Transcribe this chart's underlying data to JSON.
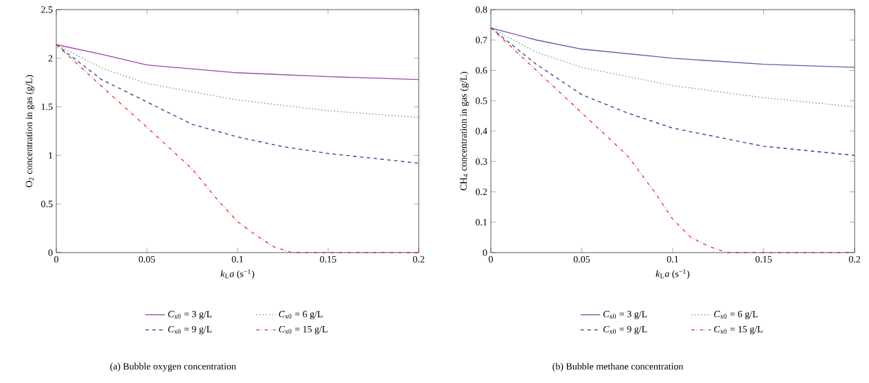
{
  "chart_data": [
    {
      "type": "line",
      "xlabel": "*k*$_{L}$*a* (s$^{−1}$)",
      "ylabel": "O$_{2}$ concentration in gas (g/L)",
      "xlim": [
        0,
        0.2
      ],
      "ylim": [
        0,
        2.5
      ],
      "xticks": [
        0,
        0.05,
        0.1,
        0.15,
        0.2
      ],
      "yticks": [
        0,
        0.5,
        1,
        1.5,
        2,
        2.5
      ],
      "legend": "bottom",
      "annotations": [
        "(a)  Bubble oxygen concentration"
      ],
      "series": [
        {
          "name": "*C*$_{x0}$ = 3 g/L",
          "color": "#a040b0",
          "line_style": "solid",
          "x": [
            0,
            0.025,
            0.05,
            0.1,
            0.15,
            0.2
          ],
          "values": [
            2.14,
            2.04,
            1.93,
            1.85,
            1.81,
            1.78
          ]
        },
        {
          "name": "*C*$_{x0}$ = 6 g/L",
          "color": "#30a050",
          "line_style": "dotted",
          "x": [
            0,
            0.025,
            0.05,
            0.1,
            0.15,
            0.2
          ],
          "values": [
            2.14,
            1.9,
            1.74,
            1.57,
            1.46,
            1.39
          ]
        },
        {
          "name": "*C*$_{x0}$ = 9 g/L",
          "color": "#303a90",
          "line_style": "dashed",
          "x": [
            0,
            0.025,
            0.05,
            0.075,
            0.1,
            0.125,
            0.15,
            0.2
          ],
          "values": [
            2.14,
            1.78,
            1.55,
            1.32,
            1.19,
            1.09,
            1.02,
            0.92
          ]
        },
        {
          "name": "*C*$_{x0}$ = 15 g/L",
          "color": "#e03030",
          "line_style": "dashdot",
          "x": [
            0,
            0.025,
            0.05,
            0.075,
            0.09,
            0.1,
            0.11,
            0.12,
            0.13,
            0.2
          ],
          "values": [
            2.14,
            1.71,
            1.29,
            0.86,
            0.52,
            0.32,
            0.18,
            0.06,
            0,
            0
          ]
        }
      ]
    },
    {
      "type": "line",
      "xlabel": "*k*$_{L}$*a* (s$^{−1}$)",
      "ylabel": "CH$_{4}$ concentration in gas (g/L)",
      "xlim": [
        0,
        0.2
      ],
      "ylim": [
        0,
        0.8
      ],
      "xticks": [
        0,
        0.05,
        0.1,
        0.15,
        0.2
      ],
      "yticks": [
        0,
        0.1,
        0.2,
        0.3,
        0.4,
        0.5,
        0.6,
        0.7,
        0.8
      ],
      "legend": "bottom",
      "annotations": [
        "(b)  Bubble methane concentration"
      ],
      "series": [
        {
          "name": "*C*$_{x0}$ = 3 g/L",
          "color": "#7050b0",
          "line_style": "solid",
          "x": [
            0,
            0.025,
            0.05,
            0.1,
            0.15,
            0.2
          ],
          "values": [
            0.74,
            0.7,
            0.67,
            0.64,
            0.62,
            0.61
          ]
        },
        {
          "name": "*C*$_{x0}$ = 6 g/L",
          "color": "#30a050",
          "line_style": "dotted",
          "x": [
            0,
            0.025,
            0.05,
            0.1,
            0.15,
            0.2
          ],
          "values": [
            0.74,
            0.66,
            0.61,
            0.55,
            0.51,
            0.48
          ]
        },
        {
          "name": "*C*$_{x0}$ = 9 g/L",
          "color": "#303a90",
          "line_style": "dashed",
          "x": [
            0,
            0.025,
            0.05,
            0.075,
            0.1,
            0.125,
            0.15,
            0.2
          ],
          "values": [
            0.74,
            0.62,
            0.52,
            0.46,
            0.41,
            0.38,
            0.35,
            0.32
          ]
        },
        {
          "name": "*C*$_{x0}$ = 15 g/L",
          "color": "#e03030",
          "line_style": "dashdot",
          "x": [
            0,
            0.025,
            0.05,
            0.075,
            0.09,
            0.1,
            0.11,
            0.12,
            0.13,
            0.2
          ],
          "values": [
            0.74,
            0.6,
            0.46,
            0.32,
            0.2,
            0.11,
            0.05,
            0.02,
            0,
            0
          ]
        }
      ]
    }
  ]
}
